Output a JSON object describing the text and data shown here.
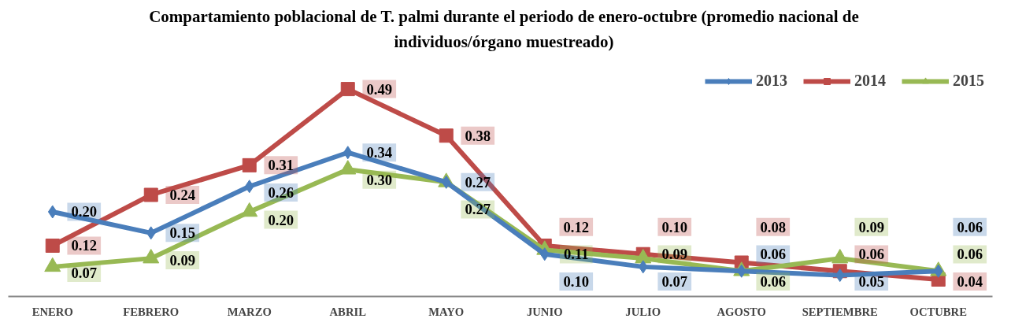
{
  "chart_data": {
    "type": "line",
    "title": "Compartamiento poblacional de T. palmi durante el periodo de enero-octubre (promedio nacional de individuos/órgano muestreado)",
    "categories": [
      "ENERO",
      "FEBRERO",
      "MARZO",
      "ABRIL",
      "MAYO",
      "JUNIO",
      "JULIO",
      "AGOSTO",
      "SEPTIEMBRE",
      "OCTUBRE"
    ],
    "series": [
      {
        "name": "2013",
        "color": "#4a7ebb",
        "marker": "diamond",
        "values": [
          0.2,
          0.15,
          0.26,
          0.34,
          0.27,
          0.1,
          0.07,
          0.06,
          0.05,
          0.06
        ],
        "value_labels": [
          "0.20",
          "0.15",
          "0.26",
          "0.34",
          "0.27",
          "0.10",
          "0.07",
          "0.06",
          "0.05",
          "0.06"
        ]
      },
      {
        "name": "2014",
        "color": "#be4b48",
        "marker": "square",
        "values": [
          0.12,
          0.24,
          0.31,
          0.49,
          0.38,
          0.12,
          0.1,
          0.08,
          0.06,
          0.04
        ],
        "value_labels": [
          "0.12",
          "0.24",
          "0.31",
          "0.49",
          "0.38",
          "0.12",
          "0.10",
          "0.08",
          "0.06",
          "0.04"
        ]
      },
      {
        "name": "2015",
        "color": "#98b954",
        "marker": "triangle",
        "values": [
          0.07,
          0.09,
          0.2,
          0.3,
          0.27,
          0.11,
          0.09,
          0.06,
          0.09,
          0.06
        ],
        "value_labels": [
          "0.07",
          "0.09",
          "0.20",
          "0.30",
          "0.27",
          "0.11",
          "0.09",
          "0.06",
          "0.09",
          "0.06"
        ]
      }
    ],
    "legend": "top right",
    "line_style": "solid"
  }
}
